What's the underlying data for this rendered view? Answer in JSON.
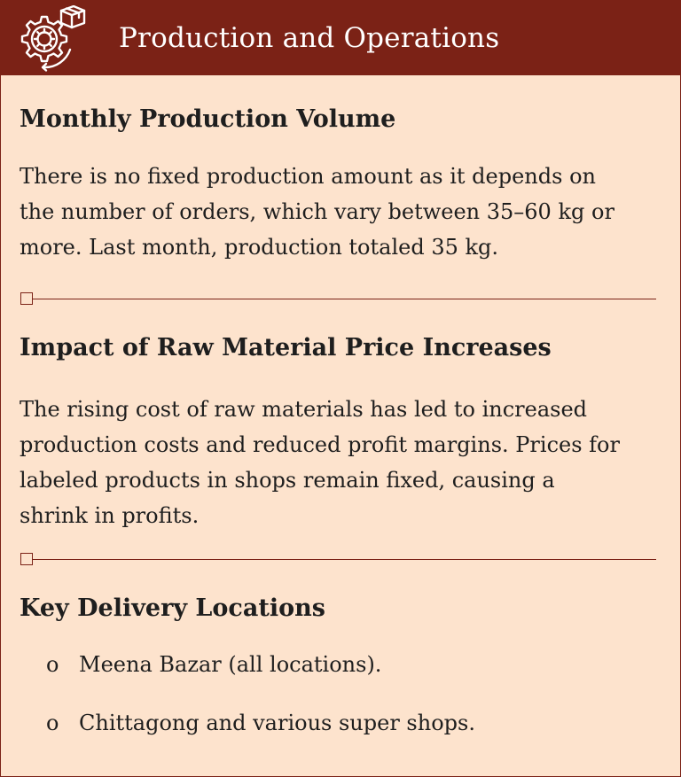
{
  "header": {
    "title": "Production and Operations",
    "icon": "gear-box-icon"
  },
  "sections": [
    {
      "heading": "Monthly Production Volume",
      "lines": [
        "There is no fixed production amount as it depends on",
        "the number of orders, which vary between 35–60 kg or",
        "more. Last month, production totaled 35 kg."
      ]
    },
    {
      "heading": "Impact of Raw Material Price Increases",
      "lines": [
        "The rising cost of raw materials has led to increased",
        "production costs and reduced profit margins. Prices for",
        "labeled products in shops remain fixed, causing a",
        "shrink in profits."
      ]
    },
    {
      "heading": "Key Delivery Locations",
      "bullet": "o",
      "items": [
        "Meena Bazar (all locations).",
        "Chittagong and various super shops."
      ]
    }
  ],
  "colors": {
    "accent": "#7b2216",
    "background": "#fde3cd",
    "text": "#1e1e1e"
  }
}
